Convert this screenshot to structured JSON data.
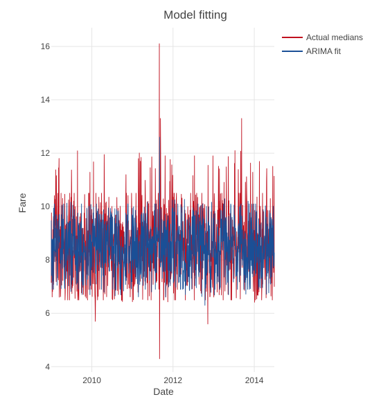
{
  "chart_data": {
    "type": "line",
    "title": "Model fitting",
    "xlabel": "Date",
    "ylabel": "Fare",
    "xlim": [
      "2009-01-01",
      "2014-06-30"
    ],
    "ylim": [
      3.8,
      16.7
    ],
    "x_ticks": [
      {
        "label": "2010",
        "value": "2010-01-01"
      },
      {
        "label": "2012",
        "value": "2012-01-01"
      },
      {
        "label": "2014",
        "value": "2014-01-01"
      }
    ],
    "y_ticks": [
      {
        "label": "4",
        "value": 4
      },
      {
        "label": "6",
        "value": 6
      },
      {
        "label": "8",
        "value": 8
      },
      {
        "label": "10",
        "value": 10
      },
      {
        "label": "12",
        "value": 12
      },
      {
        "label": "14",
        "value": 14
      },
      {
        "label": "16",
        "value": 16
      }
    ],
    "grid": true,
    "legend_position": "top-right",
    "x_start": "2009-01-01",
    "x_end": "2014-06-30",
    "series": [
      {
        "name": "Actual medians",
        "color": "#c0101e",
        "typical_low": 6.5,
        "typical_high": 10.5,
        "peak_low": 6.4,
        "peak_high": 12.1,
        "notable_points": [
          {
            "x": "2011-09-01",
            "y": 16.1
          },
          {
            "x": "2011-09-03",
            "y": 4.3
          },
          {
            "x": "2013-09-10",
            "y": 13.3
          },
          {
            "x": "2012-11-10",
            "y": 5.6
          },
          {
            "x": "2010-02-01",
            "y": 5.7
          },
          {
            "x": "2011-09-10",
            "y": 13.3
          }
        ]
      },
      {
        "name": "ARIMA fit",
        "color": "#1a4f96",
        "typical_low": 6.9,
        "typical_high": 10.1,
        "peak_low": 6.6,
        "peak_high": 10.3,
        "notable_points": [
          {
            "x": "2011-09-02",
            "y": 12.6
          },
          {
            "x": "2011-09-03",
            "y": 6.0
          },
          {
            "x": "2012-10-15",
            "y": 6.3
          }
        ]
      }
    ]
  },
  "legend": {
    "items": [
      {
        "label": "Actual medians",
        "color": "#c0101e"
      },
      {
        "label": "ARIMA fit",
        "color": "#1a4f96"
      }
    ]
  }
}
